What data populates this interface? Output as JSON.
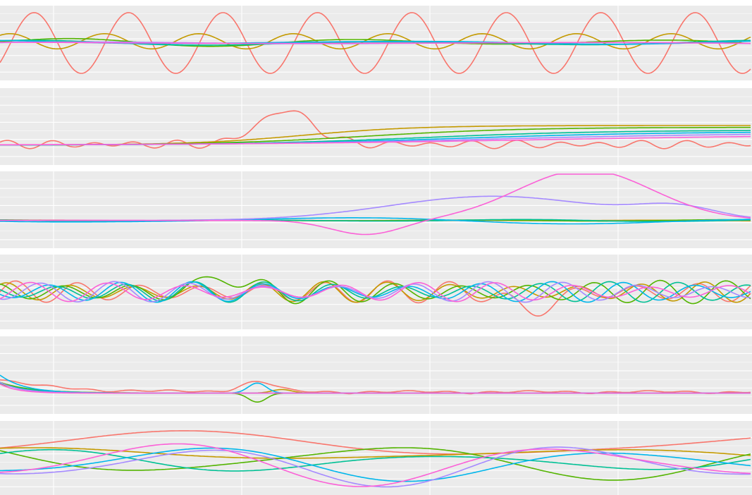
{
  "figure": {
    "background": "#ffffff",
    "panel_background": "#ebebeb",
    "grid_color": "#ffffff",
    "grid": true,
    "legend": "none",
    "series_palette": [
      "#f8766d",
      "#c49a00",
      "#53b400",
      "#00c094",
      "#00b6eb",
      "#a58aff",
      "#fb61d7"
    ]
  },
  "chart_data": [
    {
      "type": "line",
      "panel": 1,
      "x_range": [
        0,
        1067
      ],
      "ylim": [
        -1,
        1
      ],
      "series": [
        {
          "color": "#f8766d",
          "kind": "sine",
          "base": 0.0,
          "amp": 0.88,
          "period": 134,
          "phase": -0.7,
          "hump": null
        },
        {
          "color": "#c49a00",
          "kind": "sine",
          "base": 0.05,
          "amp": 0.22,
          "period": 134,
          "phase": 0.9,
          "hump": null
        },
        {
          "color": "#53b400",
          "kind": "wave",
          "base": 0.02,
          "amp": 0.12,
          "period": 420,
          "phase": 0.2,
          "hump": null
        },
        {
          "color": "#00c094",
          "kind": "wave",
          "base": 0.0,
          "amp": 0.08,
          "period": 520,
          "phase": 1.1,
          "hump": null
        },
        {
          "color": "#00b6eb",
          "kind": "wave",
          "base": 0.02,
          "amp": 0.06,
          "period": 600,
          "phase": 2.0,
          "hump": null
        },
        {
          "color": "#a58aff",
          "kind": "wave",
          "base": 0.0,
          "amp": 0.03,
          "period": 700,
          "phase": 0.5,
          "hump": null
        },
        {
          "color": "#fb61d7",
          "kind": "wave",
          "base": 0.0,
          "amp": 0.02,
          "period": 800,
          "phase": 1.5,
          "hump": null
        }
      ]
    },
    {
      "type": "line",
      "panel": 2,
      "x_range": [
        0,
        1067
      ],
      "ylim": [
        -1,
        1
      ],
      "series": [
        {
          "color": "#f8766d",
          "kind": "noisy",
          "base": -0.5,
          "amp": 0.08,
          "period": 60,
          "phase": 0.3,
          "hump": [
            405,
            0.95,
            55
          ]
        },
        {
          "color": "#c49a00",
          "kind": "sigmoid",
          "base": -0.52,
          "amp": 0.55,
          "period": 80,
          "phase": 430,
          "hump": null
        },
        {
          "color": "#53b400",
          "kind": "sigmoid",
          "base": -0.52,
          "amp": 0.5,
          "period": 110,
          "phase": 520,
          "hump": null
        },
        {
          "color": "#00c094",
          "kind": "sigmoid",
          "base": -0.52,
          "amp": 0.42,
          "period": 130,
          "phase": 600,
          "hump": null
        },
        {
          "color": "#00b6eb",
          "kind": "sigmoid",
          "base": -0.52,
          "amp": 0.38,
          "period": 150,
          "phase": 650,
          "hump": null
        },
        {
          "color": "#a58aff",
          "kind": "sigmoid",
          "base": -0.52,
          "amp": 0.34,
          "period": 180,
          "phase": 700,
          "hump": null
        },
        {
          "color": "#fb61d7",
          "kind": "sigmoid",
          "base": -0.52,
          "amp": 0.3,
          "period": 220,
          "phase": 760,
          "hump": null
        }
      ]
    },
    {
      "type": "line",
      "panel": 3,
      "x_range": [
        0,
        1067
      ],
      "ylim": [
        -1,
        1
      ],
      "series": [
        {
          "color": "#f8766d",
          "kind": "wave",
          "base": -0.3,
          "amp": 0.01,
          "period": 300,
          "phase": 0.1,
          "hump": null
        },
        {
          "color": "#c49a00",
          "kind": "wave",
          "base": -0.3,
          "amp": 0.01,
          "period": 300,
          "phase": 1.0,
          "hump": null
        },
        {
          "color": "#53b400",
          "kind": "wave",
          "base": -0.3,
          "amp": 0.02,
          "period": 350,
          "phase": 2.0,
          "hump": null
        },
        {
          "color": "#00c094",
          "kind": "wave",
          "base": -0.3,
          "amp": 0.03,
          "period": 400,
          "phase": 2.6,
          "hump": null
        },
        {
          "color": "#00b6eb",
          "kind": "wave",
          "base": -0.3,
          "amp": 0.1,
          "period": 700,
          "phase": 3.6,
          "hump": null
        },
        {
          "color": "#a58aff",
          "kind": "bump",
          "base": -0.3,
          "amp": 0.68,
          "period": 210,
          "phase": 700,
          "hump": [
            960,
            0.32,
            80
          ]
        },
        {
          "color": "#fb61d7",
          "kind": "bump",
          "base": -0.3,
          "amp": 1.42,
          "period": 135,
          "phase": 830,
          "hump": [
            520,
            -0.4,
            70
          ]
        }
      ]
    },
    {
      "type": "line",
      "panel": 4,
      "x_range": [
        0,
        1067
      ],
      "ylim": [
        -1,
        1
      ],
      "series": [
        {
          "color": "#f8766d",
          "kind": "sine2",
          "base": 0.0,
          "amp": 0.32,
          "period": 88,
          "phase": 0.0,
          "hump": [
            755,
            -0.55,
            40
          ]
        },
        {
          "color": "#c49a00",
          "kind": "sine2",
          "base": 0.0,
          "amp": 0.3,
          "period": 90,
          "phase": 0.9,
          "hump": null
        },
        {
          "color": "#53b400",
          "kind": "sine2",
          "base": 0.0,
          "amp": 0.34,
          "period": 94,
          "phase": 1.8,
          "hump": [
            318,
            0.55,
            30
          ]
        },
        {
          "color": "#00c094",
          "kind": "sine2",
          "base": 0.0,
          "amp": 0.3,
          "period": 98,
          "phase": 2.7,
          "hump": null
        },
        {
          "color": "#00b6eb",
          "kind": "sine2",
          "base": 0.0,
          "amp": 0.3,
          "period": 102,
          "phase": 3.6,
          "hump": null
        },
        {
          "color": "#a58aff",
          "kind": "sine2",
          "base": 0.0,
          "amp": 0.3,
          "period": 106,
          "phase": 4.5,
          "hump": null
        },
        {
          "color": "#fb61d7",
          "kind": "sine2",
          "base": 0.0,
          "amp": 0.28,
          "period": 110,
          "phase": 5.4,
          "hump": null
        }
      ]
    },
    {
      "type": "line",
      "panel": 5,
      "x_range": [
        0,
        1067
      ],
      "ylim": [
        -1,
        1
      ],
      "series": [
        {
          "color": "#f8766d",
          "kind": "decaynoise",
          "base": -0.5,
          "amp": 0.35,
          "period": 55,
          "phase": 0.4,
          "hump": [
            365,
            0.28,
            35
          ]
        },
        {
          "color": "#c49a00",
          "kind": "decay",
          "base": -0.5,
          "amp": 0.25,
          "period": 50,
          "phase": 0.0,
          "hump": [
            400,
            0.1,
            20
          ]
        },
        {
          "color": "#53b400",
          "kind": "decay",
          "base": -0.5,
          "amp": 0.3,
          "period": 45,
          "phase": 0.0,
          "hump": [
            365,
            -0.25,
            18
          ]
        },
        {
          "color": "#00c094",
          "kind": "decay",
          "base": -0.5,
          "amp": 0.28,
          "period": 40,
          "phase": 0.0,
          "hump": null
        },
        {
          "color": "#00b6eb",
          "kind": "decay",
          "base": -0.5,
          "amp": 0.5,
          "period": 35,
          "phase": 0.0,
          "hump": [
            365,
            0.28,
            18
          ]
        },
        {
          "color": "#a58aff",
          "kind": "decay",
          "base": -0.5,
          "amp": 0.3,
          "period": 30,
          "phase": 0.0,
          "hump": null
        },
        {
          "color": "#fb61d7",
          "kind": "decay",
          "base": -0.5,
          "amp": 0.25,
          "period": 25,
          "phase": 0.0,
          "hump": null
        }
      ]
    },
    {
      "type": "line",
      "panel": 6,
      "x_range": [
        0,
        1067
      ],
      "ylim": [
        -1,
        1
      ],
      "series": [
        {
          "color": "#f8766d",
          "kind": "wave",
          "base": 0.35,
          "amp": 0.45,
          "period": 900,
          "phase": -0.2,
          "hump": null
        },
        {
          "color": "#c49a00",
          "kind": "wave",
          "base": 0.1,
          "amp": 0.2,
          "period": 800,
          "phase": 1.2,
          "hump": null
        },
        {
          "color": "#53b400",
          "kind": "wave",
          "base": -0.05,
          "amp": 0.6,
          "period": 650,
          "phase": 2.6,
          "hump": null
        },
        {
          "color": "#00c094",
          "kind": "wave",
          "base": -0.1,
          "amp": 0.35,
          "period": 560,
          "phase": 0.8,
          "hump": null
        },
        {
          "color": "#00b6eb",
          "kind": "wave",
          "base": -0.15,
          "amp": 0.55,
          "period": 600,
          "phase": 4.9,
          "hump": null
        },
        {
          "color": "#a58aff",
          "kind": "wave",
          "base": -0.2,
          "amp": 0.65,
          "period": 520,
          "phase": 4.4,
          "hump": null
        },
        {
          "color": "#fb61d7",
          "kind": "wave",
          "base": -0.15,
          "amp": 0.7,
          "period": 560,
          "phase": 5.2,
          "hump": null
        }
      ]
    }
  ]
}
